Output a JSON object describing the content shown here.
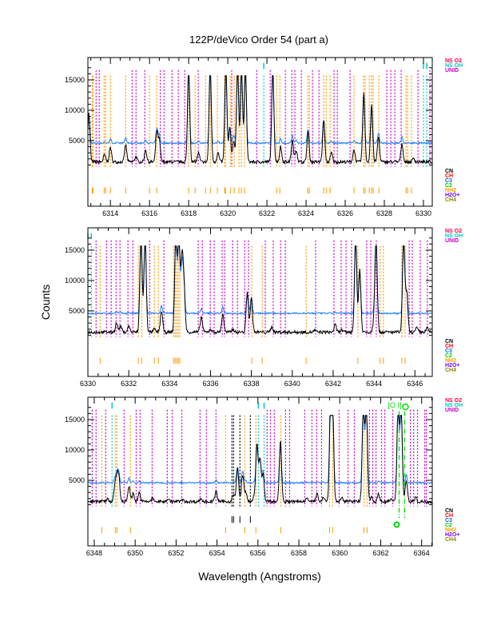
{
  "chart_data": {
    "type": "line",
    "title": "122P/deVico Order 54 (part a)",
    "xlabel": "Wavelength (Angstroms)",
    "ylabel": "Counts",
    "ylim": [
      -5790,
      18680
    ],
    "yticks": [
      5000,
      10000,
      15000
    ],
    "ytick_labels": [
      "5000",
      "10000",
      "15000"
    ],
    "clip_counts": 15700,
    "blue_baseline": 4600,
    "black_baseline": 1500,
    "colors": {
      "spectrum": "#000000",
      "model": "#1f7fff",
      "UNID": "#cc00cc",
      "NS OH": "#00c8c8",
      "NS O2": "#ff0040",
      "NH2": "#ff9900",
      "CN": "#000000",
      "telluric": "#00dd00"
    },
    "legend_top": [
      {
        "label": "NS O2",
        "color": "#ff0040"
      },
      {
        "label": "NS OH",
        "color": "#00c8c8"
      },
      {
        "label": "UNID",
        "color": "#cc00cc"
      }
    ],
    "legend_bottom": [
      {
        "label": "CN",
        "color": "#000000"
      },
      {
        "label": "CH",
        "color": "#ff0000"
      },
      {
        "label": "C3",
        "color": "#0066ff"
      },
      {
        "label": "C2",
        "color": "#00cc00"
      },
      {
        "label": "NH2",
        "color": "#ff9900"
      },
      {
        "label": "H2O+",
        "color": "#7700ff"
      },
      {
        "label": "CH4",
        "color": "#888800"
      }
    ],
    "panels": [
      {
        "xlim": [
          6312.85,
          6330.45
        ],
        "xticks": [
          "6314",
          "6316",
          "6318",
          "6320",
          "6322",
          "6324",
          "6326",
          "6328",
          "6330"
        ],
        "lines": {
          "UNID": [
            6313.27,
            6313.43,
            6315.11,
            6315.31,
            6315.76,
            6316.55,
            6316.74,
            6317.15,
            6317.47,
            6317.8,
            6318.49,
            6320.2,
            6321.48,
            6322.17,
            6322.94,
            6323.27,
            6323.43,
            6323.76,
            6324.33,
            6324.66,
            6325.43,
            6325.6,
            6326.25,
            6328.13,
            6328.33,
            6328.54,
            6328.86,
            6329.72,
            6330.33
          ],
          "NH2": [
            6313.07,
            6313.11,
            6313.68,
            6313.76,
            6314.0,
            6314.78,
            6316.0,
            6316.37,
            6318.0,
            6318.33,
            6318.86,
            6319.11,
            6319.47,
            6319.84,
            6319.88,
            6320.13,
            6320.33,
            6320.57,
            6320.69,
            6320.86,
            6322.5,
            6322.66,
            6324.09,
            6324.17,
            6324.9,
            6325.03,
            6325.23,
            6326.45,
            6326.94,
            6327.02,
            6327.23,
            6327.35,
            6327.43,
            6327.72,
            6329.11,
            6329.19,
            6329.39
          ],
          "NS OH": [
            6321.84,
            6330.0,
            6330.17
          ],
          "CN": []
        },
        "peaks": [
          [
            6312.9,
            8000
          ],
          [
            6313.7,
            1200
          ],
          [
            6314.0,
            2400
          ],
          [
            6314.78,
            2800
          ],
          [
            6315.3,
            900
          ],
          [
            6315.8,
            2000
          ],
          [
            6316.37,
            5000
          ],
          [
            6316.5,
            3500
          ],
          [
            6318.0,
            16000
          ],
          [
            6318.5,
            1500
          ],
          [
            6319.1,
            16000
          ],
          [
            6319.5,
            1500
          ],
          [
            6319.9,
            16000
          ],
          [
            6320.1,
            5500
          ],
          [
            6320.3,
            3500
          ],
          [
            6320.5,
            16000
          ],
          [
            6320.7,
            16000
          ],
          [
            6320.9,
            16000
          ],
          [
            6322.3,
            16000
          ],
          [
            6322.7,
            2500
          ],
          [
            6323.3,
            3500
          ],
          [
            6323.5,
            2000
          ],
          [
            6324.1,
            5000
          ],
          [
            6324.9,
            7000
          ],
          [
            6325.3,
            1500
          ],
          [
            6326.45,
            2000
          ],
          [
            6326.95,
            11500
          ],
          [
            6327.35,
            9500
          ],
          [
            6327.7,
            4000
          ],
          [
            6328.9,
            3000
          ],
          [
            6329.5,
            600
          ]
        ]
      },
      {
        "xlim": [
          6330.0,
          6346.85
        ],
        "xticks": [
          "6330",
          "6332",
          "6334",
          "6336",
          "6338",
          "6340",
          "6342",
          "6344",
          "6346"
        ],
        "lines": {
          "UNID": [
            6330.4,
            6330.91,
            6331.14,
            6331.38,
            6331.57,
            6331.96,
            6332.2,
            6333.02,
            6333.72,
            6335.4,
            6335.6,
            6335.99,
            6336.18,
            6336.57,
            6336.69,
            6337.08,
            6337.32,
            6337.67,
            6337.86,
            6338.68,
            6339.07,
            6339.43,
            6339.66,
            6341.14,
            6342.04,
            6342.39,
            6342.63,
            6342.9,
            6343.64,
            6343.84,
            6344.11,
            6345.72,
            6345.87,
            6346.26,
            6346.61
          ],
          "NH2": [
            6330.6,
            6332.47,
            6332.63,
            6333.25,
            6333.45,
            6334.19,
            6334.27,
            6334.35,
            6334.42,
            6334.5,
            6338.02,
            6338.53,
            6340.68,
            6343.21,
            6344.3,
            6344.46,
            6345.36,
            6345.52
          ],
          "NS OH": [
            6330.0,
            6330.17
          ],
          "CN": []
        },
        "peaks": [
          [
            6331.4,
            1500
          ],
          [
            6331.6,
            1000
          ],
          [
            6332.0,
            1000
          ],
          [
            6332.6,
            16000
          ],
          [
            6332.8,
            16000
          ],
          [
            6333.25,
            500
          ],
          [
            6333.6,
            3500
          ],
          [
            6334.3,
            16000
          ],
          [
            6334.45,
            16000
          ],
          [
            6334.6,
            11500
          ],
          [
            6334.7,
            7500
          ],
          [
            6335.55,
            2500
          ],
          [
            6336.0,
            500
          ],
          [
            6336.6,
            3000
          ],
          [
            6337.1,
            500
          ],
          [
            6337.8,
            6500
          ],
          [
            6338.0,
            5500
          ],
          [
            6339.0,
            900
          ],
          [
            6341.1,
            300
          ],
          [
            6342.1,
            1200
          ],
          [
            6342.4,
            400
          ],
          [
            6343.1,
            16000
          ],
          [
            6343.3,
            10500
          ],
          [
            6344.0,
            1500
          ],
          [
            6344.1,
            16000
          ],
          [
            6345.45,
            16000
          ],
          [
            6345.6,
            6500
          ],
          [
            6346.1,
            700
          ],
          [
            6346.6,
            700
          ]
        ]
      },
      {
        "xlim": [
          6347.69,
          6364.52
        ],
        "xticks": [
          "6348",
          "6350",
          "6352",
          "6354",
          "6356",
          "6358",
          "6360",
          "6362",
          "6364"
        ],
        "lines": {
          "UNID": [
            6347.9,
            6348.09,
            6348.56,
            6349.46,
            6350.05,
            6350.24,
            6350.83,
            6351.57,
            6351.81,
            6352.28,
            6353.17,
            6353.48,
            6353.95,
            6356.45,
            6356.61,
            6356.8,
            6357.35,
            6357.55,
            6358.29,
            6358.64,
            6358.87,
            6359.11,
            6359.97,
            6360.4,
            6360.71,
            6361.45,
            6361.61,
            6361.77,
            6362.04,
            6362.2,
            6362.59,
            6363.45,
            6363.61,
            6363.8,
            6364.15,
            6364.23
          ],
          "NH2": [
            6348.37,
            6349.03,
            6349.11,
            6349.77,
            6354.42,
            6355.36,
            6355.9,
            6357.12,
            6359.5,
            6359.65,
            6361.18,
            6361.33
          ],
          "NS OH": [
            6348.87,
            6356.02,
            6356.3
          ],
          "CN": [
            6354.73,
            6354.81,
            6355.12,
            6355.63
          ]
        },
        "telluric": {
          "lines": [
            6362.9,
            6363.17
          ],
          "label": "[O I]"
        },
        "peaks": [
          [
            6348.4,
            300
          ],
          [
            6348.65,
            500
          ],
          [
            6349.0,
            2000
          ],
          [
            6349.1,
            3500
          ],
          [
            6349.2,
            4000
          ],
          [
            6349.7,
            2500
          ],
          [
            6349.9,
            1300
          ],
          [
            6350.2,
            1500
          ],
          [
            6350.85,
            500
          ],
          [
            6351.6,
            500
          ],
          [
            6352.3,
            300
          ],
          [
            6353.2,
            500
          ],
          [
            6353.95,
            1700
          ],
          [
            6354.8,
            1100
          ],
          [
            6355.0,
            5500
          ],
          [
            6355.25,
            4500
          ],
          [
            6355.4,
            1500
          ],
          [
            6355.8,
            700
          ],
          [
            6355.95,
            9500
          ],
          [
            6356.1,
            7000
          ],
          [
            6356.25,
            4500
          ],
          [
            6357.1,
            10000
          ],
          [
            6358.4,
            800
          ],
          [
            6358.9,
            1200
          ],
          [
            6359.2,
            800
          ],
          [
            6359.55,
            16000
          ],
          [
            6359.65,
            16000
          ],
          [
            6360.1,
            500
          ],
          [
            6360.5,
            300
          ],
          [
            6361.15,
            16000
          ],
          [
            6361.3,
            16000
          ],
          [
            6361.55,
            800
          ],
          [
            6361.9,
            1200
          ],
          [
            6362.5,
            400
          ],
          [
            6362.85,
            16000
          ],
          [
            6363.0,
            16000
          ],
          [
            6363.25,
            3500
          ],
          [
            6363.7,
            700
          ]
        ]
      }
    ]
  }
}
